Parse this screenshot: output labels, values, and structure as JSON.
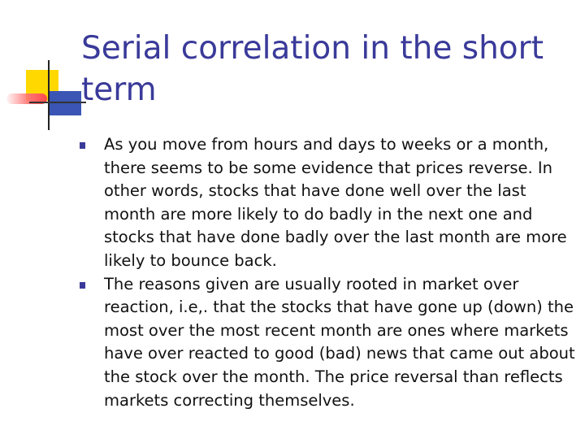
{
  "slide": {
    "title": "Serial correlation in the short term",
    "bullets": [
      "As you move from hours and days to weeks or a month, there seems to be some evidence that prices reverse. In other words, stocks that have done well over the last month are more likely to do badly in the next one and stocks that have done badly over the last month are more likely to bounce back.",
      "The reasons given are usually rooted in market over reaction, i.e,. that the stocks that have gone up (down) the most over the most recent month are ones where markets have over reacted to good (bad) news that came out about the stock over the month. The price reversal than reflects markets correcting themselves."
    ]
  },
  "colors": {
    "title": "#3a3a9a",
    "bullet_marker": "#3a3a9a",
    "body_text": "#111111",
    "deco_yellow": "#ffd800",
    "deco_blue": "#3a55b4",
    "deco_red": "#ff4a4a"
  }
}
